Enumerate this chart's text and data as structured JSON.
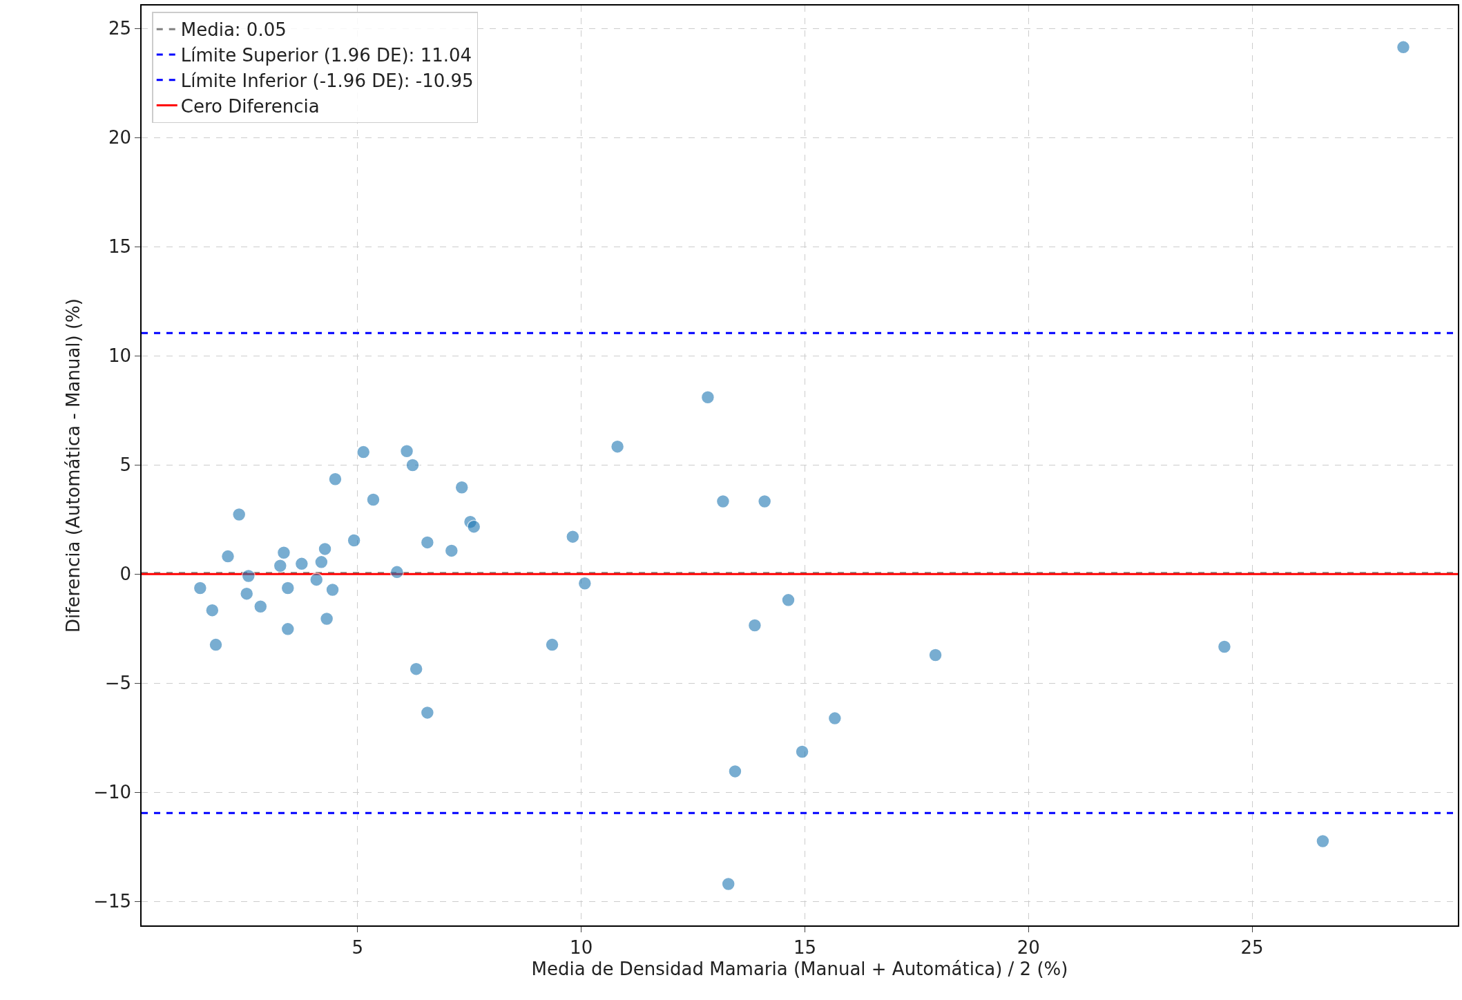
{
  "chart_data": {
    "type": "scatter",
    "xlabel": "Media de Densidad Mamaria (Manual + Automática) / 2 (%)",
    "ylabel": "Diferencia (Automática - Manual) (%)",
    "x": [
      1.48,
      1.75,
      1.83,
      2.1,
      2.35,
      2.52,
      2.56,
      2.83,
      3.27,
      3.35,
      3.44,
      3.44,
      3.75,
      4.08,
      4.19,
      4.27,
      4.31,
      4.44,
      4.5,
      4.92,
      5.13,
      5.35,
      5.88,
      6.1,
      6.23,
      6.31,
      6.56,
      6.56,
      7.1,
      7.33,
      7.52,
      7.6,
      9.35,
      9.81,
      10.08,
      10.81,
      12.83,
      13.17,
      13.29,
      13.44,
      13.88,
      14.1,
      14.63,
      14.94,
      15.67,
      17.92,
      24.38,
      26.58,
      28.38
    ],
    "series": [
      {
        "color": "#1f77b4",
        "values": [
          -0.64,
          -1.66,
          -3.24,
          0.81,
          2.73,
          -0.9,
          -0.09,
          -1.49,
          0.38,
          0.98,
          -0.64,
          -2.52,
          0.47,
          -0.26,
          0.55,
          1.15,
          -2.05,
          -0.72,
          4.35,
          1.54,
          5.59,
          3.41,
          0.09,
          5.63,
          4.99,
          -4.35,
          1.45,
          -6.35,
          1.07,
          3.97,
          2.39,
          2.17,
          -3.24,
          1.71,
          -0.43,
          5.84,
          8.1,
          3.33,
          -14.2,
          -9.04,
          -2.35,
          3.33,
          -1.19,
          -8.14,
          -6.61,
          -3.71,
          -3.33,
          -12.24,
          24.14
        ]
      }
    ],
    "ref_lines": [
      {
        "axis": "y",
        "value": 0.05,
        "label": "Media: 0.05",
        "color": "#808080",
        "line_style": "dashed"
      },
      {
        "axis": "y",
        "value": 11.04,
        "label": "Límite Superior (1.96 DE): 11.04",
        "color": "#0000ff",
        "line_style": "dashed"
      },
      {
        "axis": "y",
        "value": -10.95,
        "label": "Límite Inferior (-1.96 DE): -10.95",
        "color": "#0000ff",
        "line_style": "dashed"
      },
      {
        "axis": "y",
        "value": 0,
        "label": "Cero Diferencia",
        "color": "#ff0000",
        "line_style": "solid"
      }
    ],
    "xlim": [
      0.17,
      29.6
    ],
    "ylim": [
      -16.1,
      26.05
    ],
    "xticks": [
      5,
      10,
      15,
      20,
      25
    ],
    "yticks": [
      -15,
      -10,
      -5,
      0,
      5,
      10,
      15,
      20,
      25
    ],
    "grid": true,
    "legend": "top left",
    "marker": "circle"
  }
}
